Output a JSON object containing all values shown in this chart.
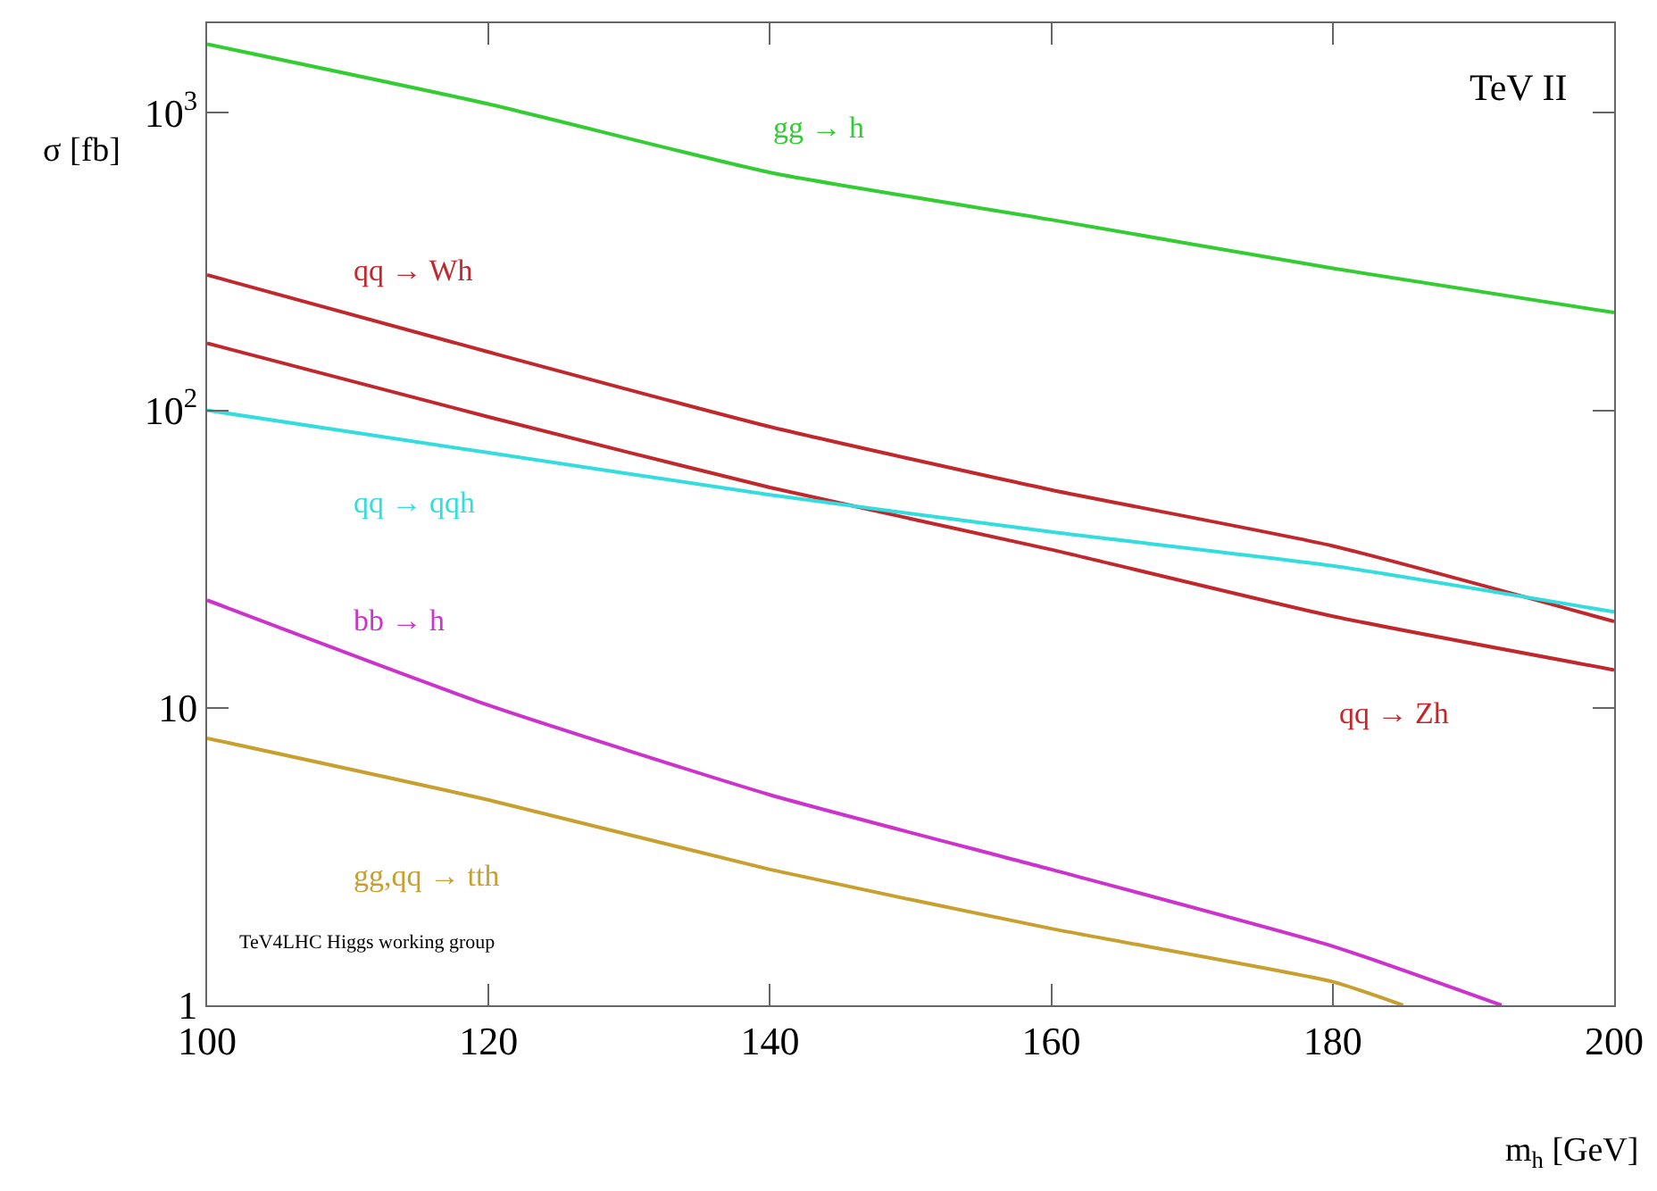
{
  "chart_data": {
    "type": "line",
    "xlabel": "m$_{h}$ [GeV]",
    "ylabel": "σ [fb]",
    "log": "y",
    "grid": false,
    "legend": false,
    "marker": "none",
    "line_style": "solid",
    "xlim": [
      100,
      200
    ],
    "xticks": [
      100,
      120,
      140,
      160,
      180,
      200
    ],
    "ylim": [
      1,
      2000
    ],
    "yticks": [
      1,
      10,
      {
        "value": 100,
        "label": "10$^{2}$"
      },
      {
        "value": 1000,
        "label": "10$^{3}$"
      }
    ],
    "x": [
      100,
      120,
      140,
      160,
      180,
      200
    ],
    "series": [
      {
        "name": "gg → h",
        "color": "#33cc33",
        "values": [
          1700,
          1070,
          630,
          437,
          300,
          213
        ]
      },
      {
        "name": "qq → Wh",
        "color": "#c0282d",
        "values": [
          285,
          157,
          88,
          54,
          35,
          19.5
        ]
      },
      {
        "name": "qq → Zh",
        "color": "#c0282d",
        "values": [
          168,
          95,
          55,
          34,
          20.3,
          13.4
        ]
      },
      {
        "name": "qq → qqh",
        "color": "#33dddd",
        "values": [
          100,
          72,
          52,
          39,
          30,
          21
        ]
      },
      {
        "name": "bb → h",
        "color": "#cc33cc",
        "x": [
          100,
          120,
          140,
          160,
          180,
          192
        ],
        "values": [
          23,
          10.2,
          5.1,
          2.86,
          1.58,
          1
        ]
      },
      {
        "name": "gg,qq → tth",
        "color": "#c8a030",
        "x": [
          100,
          120,
          140,
          160,
          180,
          185
        ],
        "values": [
          7.9,
          4.9,
          2.86,
          1.81,
          1.2,
          1
        ]
      }
    ],
    "annotations": [
      "TeV II",
      "TeV4LHC Higgs working group"
    ]
  }
}
